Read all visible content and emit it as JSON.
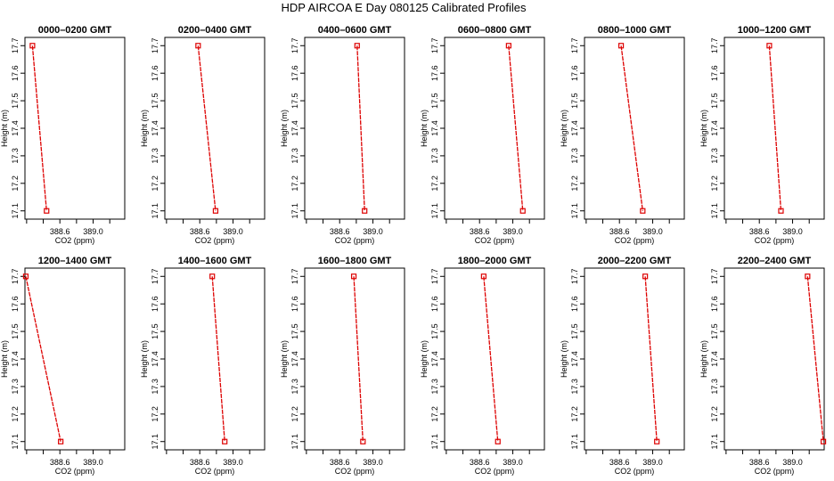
{
  "title": "HDP  AIRCOA E  Day 080125  Calibrated Profiles",
  "colors": {
    "series": "#dd0000",
    "axis": "#000000",
    "background": "#ffffff"
  },
  "chart_data": [
    {
      "type": "line",
      "title": "0000–0200 GMT",
      "xlabel": "CO2 (ppm)",
      "ylabel": "Height (m)",
      "xlim": [
        388.18,
        389.38
      ],
      "ylim": [
        17.07,
        17.73
      ],
      "xticks": [
        "388.6",
        "389.0"
      ],
      "yticks": [
        "17.1",
        "17.2",
        "17.3",
        "17.4",
        "17.5",
        "17.6",
        "17.7"
      ],
      "x": [
        388.27,
        388.44
      ],
      "y": [
        17.7,
        17.1
      ]
    },
    {
      "type": "line",
      "title": "0200–0400 GMT",
      "xlabel": "CO2 (ppm)",
      "ylabel": "Height (m)",
      "xlim": [
        388.18,
        389.38
      ],
      "ylim": [
        17.07,
        17.73
      ],
      "xticks": [
        "388.6",
        "389.0"
      ],
      "yticks": [
        "17.1",
        "17.2",
        "17.3",
        "17.4",
        "17.5",
        "17.6",
        "17.7"
      ],
      "x": [
        388.58,
        388.79
      ],
      "y": [
        17.7,
        17.1
      ]
    },
    {
      "type": "line",
      "title": "0400–0600 GMT",
      "xlabel": "CO2 (ppm)",
      "ylabel": "Height (m)",
      "xlim": [
        388.18,
        389.38
      ],
      "ylim": [
        17.07,
        17.73
      ],
      "xticks": [
        "388.6",
        "389.0"
      ],
      "yticks": [
        "17.1",
        "17.2",
        "17.3",
        "17.4",
        "17.5",
        "17.6",
        "17.7"
      ],
      "x": [
        388.81,
        388.9
      ],
      "y": [
        17.7,
        17.1
      ]
    },
    {
      "type": "line",
      "title": "0600–0800 GMT",
      "xlabel": "CO2 (ppm)",
      "ylabel": "Height (m)",
      "xlim": [
        388.18,
        389.38
      ],
      "ylim": [
        17.07,
        17.73
      ],
      "xticks": [
        "388.6",
        "389.0"
      ],
      "yticks": [
        "17.1",
        "17.2",
        "17.3",
        "17.4",
        "17.5",
        "17.6",
        "17.7"
      ],
      "x": [
        388.95,
        389.12
      ],
      "y": [
        17.7,
        17.1
      ]
    },
    {
      "type": "line",
      "title": "0800–1000 GMT",
      "xlabel": "CO2 (ppm)",
      "ylabel": "Height (m)",
      "xlim": [
        388.18,
        389.38
      ],
      "ylim": [
        17.07,
        17.73
      ],
      "xticks": [
        "388.6",
        "389.0"
      ],
      "yticks": [
        "17.1",
        "17.2",
        "17.3",
        "17.4",
        "17.5",
        "17.6",
        "17.7"
      ],
      "x": [
        388.62,
        388.88
      ],
      "y": [
        17.7,
        17.1
      ]
    },
    {
      "type": "line",
      "title": "1000–1200 GMT",
      "xlabel": "CO2 (ppm)",
      "ylabel": "Height (m)",
      "xlim": [
        388.18,
        389.38
      ],
      "ylim": [
        17.07,
        17.73
      ],
      "xticks": [
        "388.6",
        "389.0"
      ],
      "yticks": [
        "17.1",
        "17.2",
        "17.3",
        "17.4",
        "17.5",
        "17.6",
        "17.7"
      ],
      "x": [
        388.72,
        388.86
      ],
      "y": [
        17.7,
        17.1
      ]
    },
    {
      "type": "line",
      "title": "1200–1400 GMT",
      "xlabel": "CO2 (ppm)",
      "ylabel": "Height (m)",
      "xlim": [
        388.18,
        389.38
      ],
      "ylim": [
        17.07,
        17.73
      ],
      "xticks": [
        "388.6",
        "389.0"
      ],
      "yticks": [
        "17.1",
        "17.2",
        "17.3",
        "17.4",
        "17.5",
        "17.6",
        "17.7"
      ],
      "x": [
        388.19,
        388.61
      ],
      "y": [
        17.7,
        17.1
      ]
    },
    {
      "type": "line",
      "title": "1400–1600 GMT",
      "xlabel": "CO2 (ppm)",
      "ylabel": "Height (m)",
      "xlim": [
        388.18,
        389.38
      ],
      "ylim": [
        17.07,
        17.73
      ],
      "xticks": [
        "388.6",
        "389.0"
      ],
      "yticks": [
        "17.1",
        "17.2",
        "17.3",
        "17.4",
        "17.5",
        "17.6",
        "17.7"
      ],
      "x": [
        388.75,
        388.9
      ],
      "y": [
        17.7,
        17.1
      ]
    },
    {
      "type": "line",
      "title": "1600–1800 GMT",
      "xlabel": "CO2 (ppm)",
      "ylabel": "Height (m)",
      "xlim": [
        388.18,
        389.38
      ],
      "ylim": [
        17.07,
        17.73
      ],
      "xticks": [
        "388.6",
        "389.0"
      ],
      "yticks": [
        "17.1",
        "17.2",
        "17.3",
        "17.4",
        "17.5",
        "17.6",
        "17.7"
      ],
      "x": [
        388.77,
        388.88
      ],
      "y": [
        17.7,
        17.1
      ]
    },
    {
      "type": "line",
      "title": "1800–2000 GMT",
      "xlabel": "CO2 (ppm)",
      "ylabel": "Height (m)",
      "xlim": [
        388.18,
        389.38
      ],
      "ylim": [
        17.07,
        17.73
      ],
      "xticks": [
        "388.6",
        "389.0"
      ],
      "yticks": [
        "17.1",
        "17.2",
        "17.3",
        "17.4",
        "17.5",
        "17.6",
        "17.7"
      ],
      "x": [
        388.65,
        388.82
      ],
      "y": [
        17.7,
        17.1
      ]
    },
    {
      "type": "line",
      "title": "2000–2200 GMT",
      "xlabel": "CO2 (ppm)",
      "ylabel": "Height (m)",
      "xlim": [
        388.18,
        389.38
      ],
      "ylim": [
        17.07,
        17.73
      ],
      "xticks": [
        "388.6",
        "389.0"
      ],
      "yticks": [
        "17.1",
        "17.2",
        "17.3",
        "17.4",
        "17.5",
        "17.6",
        "17.7"
      ],
      "x": [
        388.91,
        389.05
      ],
      "y": [
        17.7,
        17.1
      ]
    },
    {
      "type": "line",
      "title": "2200–2400 GMT",
      "xlabel": "CO2 (ppm)",
      "ylabel": "Height (m)",
      "xlim": [
        388.18,
        389.38
      ],
      "ylim": [
        17.07,
        17.73
      ],
      "xticks": [
        "388.6",
        "389.0"
      ],
      "yticks": [
        "17.1",
        "17.2",
        "17.3",
        "17.4",
        "17.5",
        "17.6",
        "17.7"
      ],
      "x": [
        389.18,
        389.37
      ],
      "y": [
        17.7,
        17.1
      ]
    }
  ]
}
